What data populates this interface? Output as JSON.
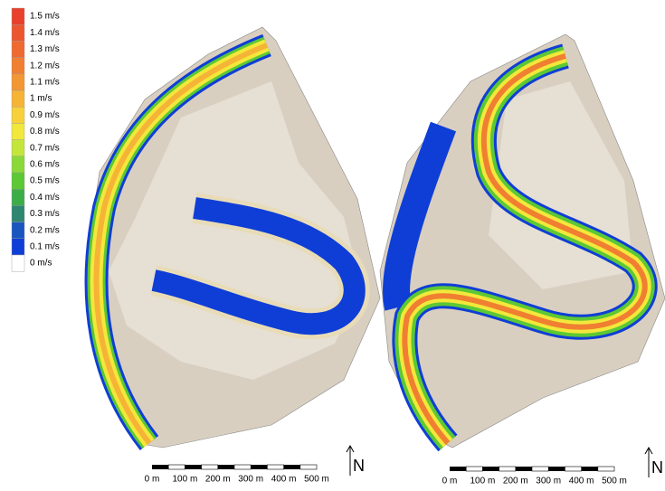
{
  "legend": {
    "items": [
      {
        "label": "1.5 m/s",
        "color": "#e8402c"
      },
      {
        "label": "1.4 m/s",
        "color": "#eb562e"
      },
      {
        "label": "1.3 m/s",
        "color": "#ee6a30"
      },
      {
        "label": "1.2 m/s",
        "color": "#f07f32"
      },
      {
        "label": "1.1 m/s",
        "color": "#f39634"
      },
      {
        "label": "1 m/s",
        "color": "#f6b437"
      },
      {
        "label": "0.9 m/s",
        "color": "#f8d03a"
      },
      {
        "label": "0.8 m/s",
        "color": "#f2e83b"
      },
      {
        "label": "0.7 m/s",
        "color": "#c4e63a"
      },
      {
        "label": "0.6 m/s",
        "color": "#8ad938"
      },
      {
        "label": "0.5 m/s",
        "color": "#5cc834"
      },
      {
        "label": "0.4 m/s",
        "color": "#3cae48"
      },
      {
        "label": "0.3 m/s",
        "color": "#2d8670"
      },
      {
        "label": "0.2 m/s",
        "color": "#1a56c0"
      },
      {
        "label": "0.1 m/s",
        "color": "#0f3ed6"
      },
      {
        "label": "0 m/s",
        "color": "#ffffff"
      }
    ]
  },
  "panels": [
    {
      "scale_labels": [
        "0 m",
        "100 m",
        "200 m",
        "300 m",
        "400 m",
        "500 m"
      ],
      "north": "N"
    },
    {
      "scale_labels": [
        "0 m",
        "100 m",
        "200 m",
        "300 m",
        "400 m",
        "500 m"
      ],
      "north": "N"
    }
  ]
}
